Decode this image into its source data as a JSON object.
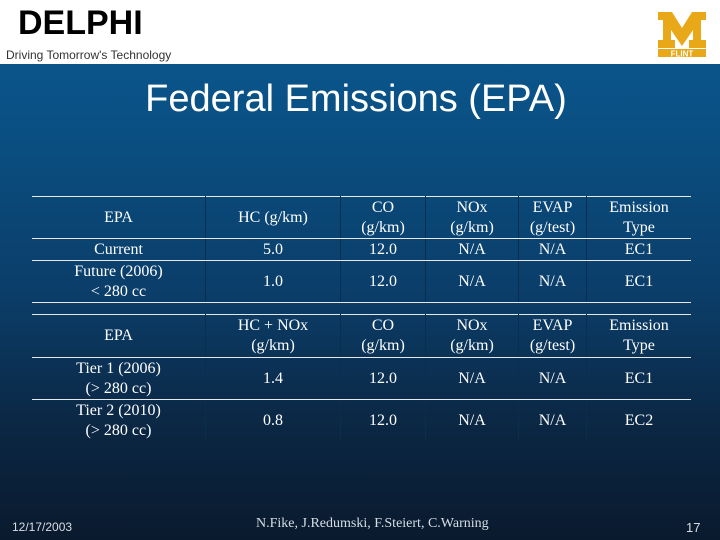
{
  "header": {
    "brand": "DELPHI",
    "tagline": "Driving Tomorrow's Technology",
    "logo": {
      "name": "um-flint-logo",
      "letters": "M",
      "sub": "FLINT",
      "color": "#e8a817"
    }
  },
  "slide": {
    "title": "Federal Emissions (EPA)"
  },
  "table1": {
    "headers": [
      [
        "EPA"
      ],
      [
        "HC (g/km)"
      ],
      [
        "CO",
        "(g/km)"
      ],
      [
        "NOx",
        "(g/km)"
      ],
      [
        "EVAP",
        "(g/test)"
      ],
      [
        "Emission",
        "Type"
      ]
    ],
    "rows": [
      [
        [
          "Current"
        ],
        [
          "5.0"
        ],
        [
          "12.0"
        ],
        [
          "N/A"
        ],
        [
          "N/A"
        ],
        [
          "EC1"
        ]
      ],
      [
        [
          "Future (2006)",
          "< 280 cc"
        ],
        [
          "1.0"
        ],
        [
          "12.0"
        ],
        [
          "N/A"
        ],
        [
          "N/A"
        ],
        [
          "EC1"
        ]
      ]
    ]
  },
  "table2": {
    "headers": [
      [
        "EPA"
      ],
      [
        "HC + NOx",
        "(g/km)"
      ],
      [
        "CO",
        "(g/km)"
      ],
      [
        "NOx",
        "(g/km)"
      ],
      [
        "EVAP",
        "(g/test)"
      ],
      [
        "Emission",
        "Type"
      ]
    ],
    "rows": [
      [
        [
          "Tier 1 (2006)",
          "(> 280 cc)"
        ],
        [
          "1.4"
        ],
        [
          "12.0"
        ],
        [
          "N/A"
        ],
        [
          "N/A"
        ],
        [
          "EC1"
        ]
      ],
      [
        [
          "Tier 2 (2010)",
          "(> 280 cc)"
        ],
        [
          "0.8"
        ],
        [
          "12.0"
        ],
        [
          "N/A"
        ],
        [
          "N/A"
        ],
        [
          "EC2"
        ]
      ]
    ]
  },
  "footer": {
    "date": "12/17/2003",
    "authors": "N.Fike, J.Redumski, F.Steiert, C.Warning",
    "page": "17"
  }
}
